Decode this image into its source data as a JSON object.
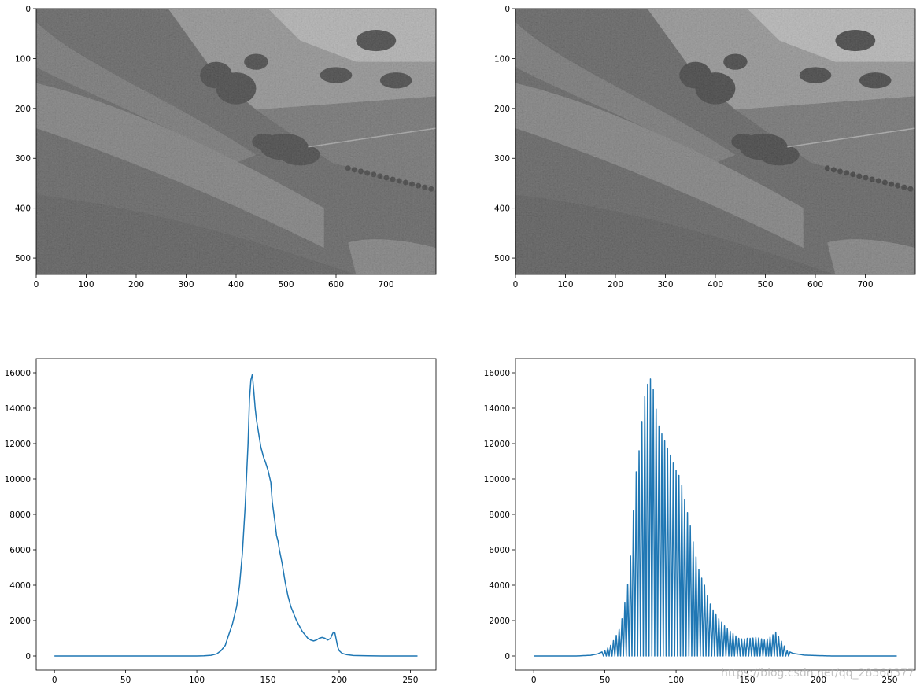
{
  "watermark": "https://blog.csdn.net/qq_28368377",
  "colors": {
    "line": "#1f77b4",
    "axis": "#000000"
  },
  "chart_data": [
    {
      "type": "image",
      "description_tag": "grayscale-landscape",
      "x_ticks": [
        0,
        100,
        200,
        300,
        400,
        500,
        600,
        700
      ],
      "y_ticks": [
        0,
        100,
        200,
        300,
        400,
        500
      ],
      "xlim": [
        0,
        800
      ],
      "ylim": [
        533,
        0
      ],
      "contrast": "low"
    },
    {
      "type": "image",
      "description_tag": "grayscale-landscape-equalized",
      "x_ticks": [
        0,
        100,
        200,
        300,
        400,
        500,
        600,
        700
      ],
      "y_ticks": [
        0,
        100,
        200,
        300,
        400,
        500
      ],
      "xlim": [
        0,
        800
      ],
      "ylim": [
        533,
        0
      ],
      "contrast": "slightly-higher"
    },
    {
      "type": "line",
      "x_ticks": [
        0,
        50,
        100,
        150,
        200,
        250
      ],
      "y_ticks": [
        0,
        2000,
        4000,
        6000,
        8000,
        10000,
        12000,
        14000,
        16000
      ],
      "xlim": [
        -12.8,
        268
      ],
      "ylim": [
        -800,
        16800
      ],
      "series": [
        {
          "points": [
            [
              0,
              0
            ],
            [
              100,
              0
            ],
            [
              105,
              10
            ],
            [
              110,
              40
            ],
            [
              114,
              120
            ],
            [
              117,
              300
            ],
            [
              120,
              600
            ],
            [
              122,
              1100
            ],
            [
              125,
              1800
            ],
            [
              128,
              2800
            ],
            [
              130,
              4000
            ],
            [
              132,
              5800
            ],
            [
              134,
              8500
            ],
            [
              136,
              12000
            ],
            [
              137,
              14500
            ],
            [
              138,
              15600
            ],
            [
              139,
              15900
            ],
            [
              140,
              15000
            ],
            [
              141,
              14000
            ],
            [
              142,
              13300
            ],
            [
              143,
              12800
            ],
            [
              144,
              12300
            ],
            [
              145,
              11800
            ],
            [
              147,
              11200
            ],
            [
              148,
              11000
            ],
            [
              150,
              10500
            ],
            [
              152,
              9800
            ],
            [
              153,
              8700
            ],
            [
              155,
              7500
            ],
            [
              156,
              6800
            ],
            [
              157,
              6500
            ],
            [
              158,
              6000
            ],
            [
              160,
              5200
            ],
            [
              162,
              4200
            ],
            [
              164,
              3400
            ],
            [
              166,
              2800
            ],
            [
              168,
              2400
            ],
            [
              170,
              2000
            ],
            [
              172,
              1700
            ],
            [
              174,
              1400
            ],
            [
              176,
              1200
            ],
            [
              178,
              1000
            ],
            [
              180,
              900
            ],
            [
              182,
              850
            ],
            [
              184,
              900
            ],
            [
              186,
              1000
            ],
            [
              188,
              1050
            ],
            [
              190,
              1000
            ],
            [
              192,
              900
            ],
            [
              194,
              1000
            ],
            [
              195,
              1200
            ],
            [
              196,
              1350
            ],
            [
              197,
              1300
            ],
            [
              198,
              900
            ],
            [
              199,
              500
            ],
            [
              200,
              300
            ],
            [
              202,
              150
            ],
            [
              205,
              80
            ],
            [
              210,
              30
            ],
            [
              220,
              10
            ],
            [
              230,
              0
            ],
            [
              255,
              0
            ]
          ]
        }
      ]
    },
    {
      "type": "line",
      "x_ticks": [
        0,
        50,
        100,
        150,
        200,
        250
      ],
      "y_ticks": [
        0,
        2000,
        4000,
        6000,
        8000,
        10000,
        12000,
        14000,
        16000
      ],
      "xlim": [
        -12.8,
        268
      ],
      "ylim": [
        -800,
        16800
      ],
      "series": [
        {
          "comb_envelope": [
            [
              0,
              0
            ],
            [
              30,
              0
            ],
            [
              40,
              40
            ],
            [
              45,
              120
            ],
            [
              50,
              300
            ],
            [
              54,
              600
            ],
            [
              57,
              1000
            ],
            [
              60,
              1500
            ],
            [
              63,
              2400
            ],
            [
              65,
              3600
            ],
            [
              67,
              4500
            ],
            [
              69,
              6800
            ],
            [
              71,
              9600
            ],
            [
              73,
              11200
            ],
            [
              75,
              12000
            ],
            [
              77,
              14500
            ],
            [
              79,
              14800
            ],
            [
              81,
              15900
            ],
            [
              83,
              15400
            ],
            [
              85,
              14700
            ],
            [
              87,
              13200
            ],
            [
              89,
              12800
            ],
            [
              91,
              12300
            ],
            [
              93,
              12000
            ],
            [
              95,
              11500
            ],
            [
              97,
              11200
            ],
            [
              99,
              10600
            ],
            [
              101,
              10400
            ],
            [
              103,
              10000
            ],
            [
              105,
              9300
            ],
            [
              107,
              8400
            ],
            [
              109,
              7800
            ],
            [
              111,
              6900
            ],
            [
              113,
              6000
            ],
            [
              115,
              5200
            ],
            [
              117,
              4600
            ],
            [
              120,
              4000
            ],
            [
              123,
              3100
            ],
            [
              126,
              2600
            ],
            [
              129,
              2200
            ],
            [
              132,
              1900
            ],
            [
              135,
              1600
            ],
            [
              138,
              1400
            ],
            [
              141,
              1200
            ],
            [
              144,
              1000
            ],
            [
              147,
              950
            ],
            [
              150,
              1000
            ],
            [
              153,
              1000
            ],
            [
              156,
              1050
            ],
            [
              159,
              1000
            ],
            [
              162,
              900
            ],
            [
              165,
              1000
            ],
            [
              168,
              1200
            ],
            [
              170,
              1350
            ],
            [
              172,
              1100
            ],
            [
              175,
              700
            ],
            [
              178,
              300
            ],
            [
              182,
              150
            ],
            [
              190,
              50
            ],
            [
              200,
              20
            ],
            [
              210,
              0
            ],
            [
              255,
              0
            ]
          ],
          "comb_step": 2
        }
      ]
    }
  ]
}
